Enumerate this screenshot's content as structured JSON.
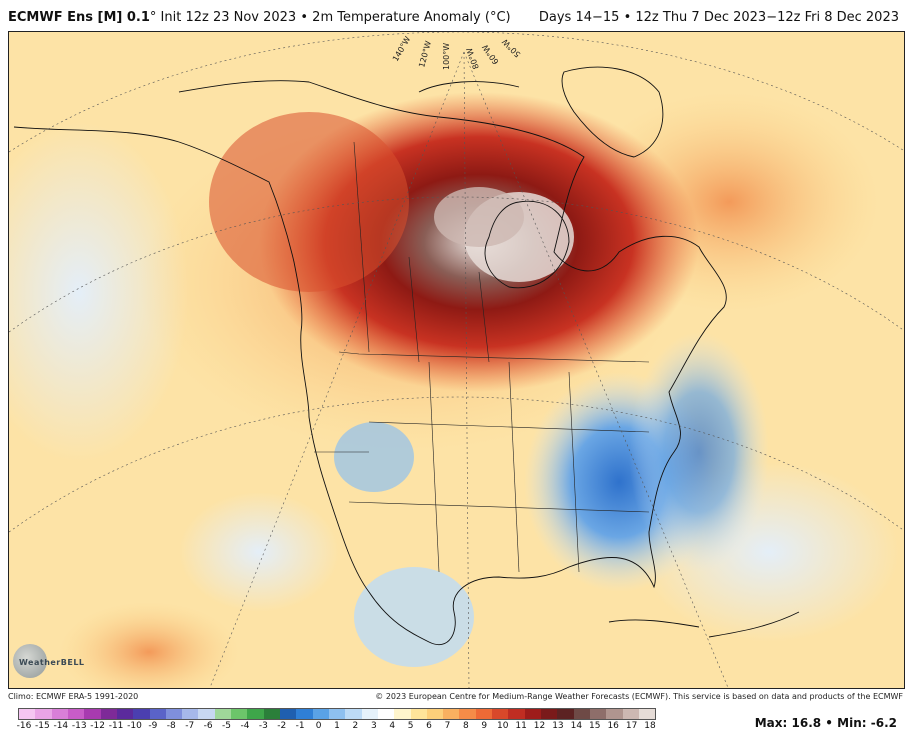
{
  "header": {
    "model": "ECMWF Ens [M] 0.1",
    "degree_mark": "°",
    "init": "Init 12z 23 Nov 2023",
    "bullet": "•",
    "variable": "2m Temperature Anomaly (°C)",
    "valid": "Days 14−15 • 12z Thu 7 Dec 2023−12z Fri 8 Dec 2023"
  },
  "map": {
    "longitude_labels": [
      "140°W",
      "120°W",
      "100°W",
      "80°W",
      "60°W",
      "50°W"
    ],
    "logo_text": "WeatherBELL"
  },
  "footer": {
    "climo": "Climo: ECMWF ERA-5 1991-2020",
    "copyright": "© 2023 European Centre for Medium-Range Weather Forecasts (ECMWF). This service is based on data and products of the ECMWF"
  },
  "colorbar": {
    "ticks": [
      "-16",
      "-15",
      "-14",
      "-13",
      "-12",
      "-11",
      "-10",
      "-9",
      "-8",
      "-7",
      "-6",
      "-5",
      "-4",
      "-3",
      "-2",
      "-1",
      "0",
      "1",
      "2",
      "3",
      "4",
      "5",
      "6",
      "7",
      "8",
      "9",
      "10",
      "11",
      "12",
      "13",
      "14",
      "15",
      "16",
      "17",
      "18"
    ],
    "colors": [
      "#f5c6f2",
      "#e9a4e6",
      "#d97fd8",
      "#c85cc8",
      "#a83ab0",
      "#7e2a98",
      "#5b2a9c",
      "#4b3fb0",
      "#5a63c8",
      "#7f8fdc",
      "#a6b8ea",
      "#c8d8f2",
      "#9fd89a",
      "#6cc56a",
      "#3ea64a",
      "#2b7f3a",
      "#1f5fb0",
      "#2f7fd6",
      "#5aa2e6",
      "#8ec0ef",
      "#bddbf6",
      "#e6f2fb",
      "#ffffff",
      "#fff5cc",
      "#ffe49a",
      "#fdcf7a",
      "#f9b060",
      "#f58c48",
      "#ee6a36",
      "#d9482a",
      "#c02d22",
      "#9e1c1a",
      "#7a1a1a",
      "#5c2222",
      "#6e4a46",
      "#8e6e6a",
      "#b0958f",
      "#cdb8b2",
      "#e6dcd7"
    ]
  },
  "stats": {
    "max_label": "Max:",
    "max": "16.8",
    "sep": "•",
    "min_label": "Min:",
    "min": "-6.2"
  }
}
